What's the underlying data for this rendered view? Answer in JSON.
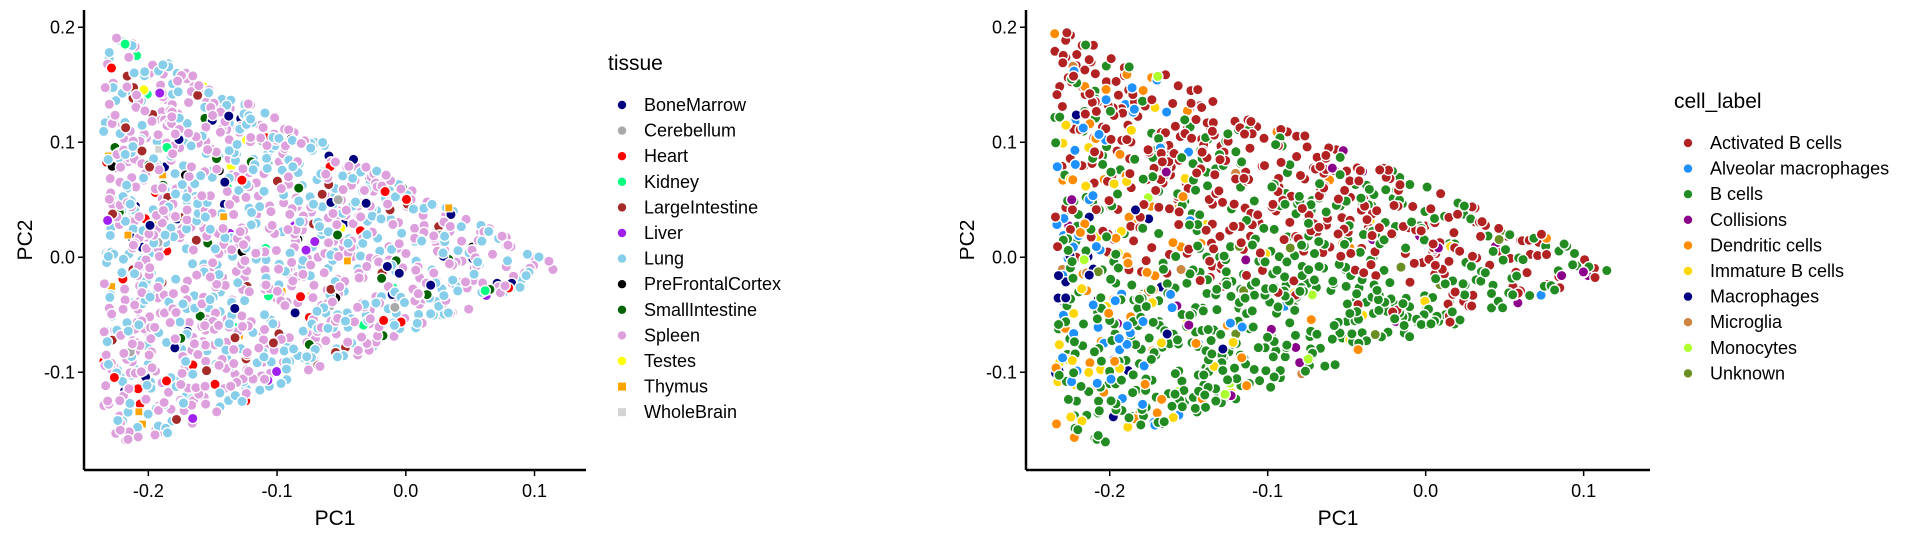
{
  "chart_data": [
    {
      "type": "scatter",
      "xlabel": "PC1",
      "ylabel": "PC2",
      "xlim": [
        -0.25,
        0.14
      ],
      "ylim": [
        -0.185,
        0.215
      ],
      "xticks": [
        -0.2,
        -0.1,
        0.0,
        0.1
      ],
      "xtick_labels": [
        "-0.2",
        "-0.1",
        "0.0",
        "0.1"
      ],
      "yticks": [
        -0.1,
        0.0,
        0.1,
        0.2
      ],
      "ytick_labels": [
        "-0.1",
        "0.0",
        "0.1",
        "0.2"
      ],
      "grid": false,
      "legend": {
        "title": "tissue",
        "placement": "right",
        "entries": [
          {
            "label": "BoneMarrow",
            "color": "#00007f",
            "shape": "circle"
          },
          {
            "label": "Cerebellum",
            "color": "#a9a9a9",
            "shape": "circle"
          },
          {
            "label": "Heart",
            "color": "#ff0000",
            "shape": "circle"
          },
          {
            "label": "Kidney",
            "color": "#00ff7f",
            "shape": "circle"
          },
          {
            "label": "LargeIntestine",
            "color": "#a52a2a",
            "shape": "circle"
          },
          {
            "label": "Liver",
            "color": "#a020f0",
            "shape": "circle"
          },
          {
            "label": "Lung",
            "color": "#87ceeb",
            "shape": "circle"
          },
          {
            "label": "PreFrontalCortex",
            "color": "#000000",
            "shape": "circle"
          },
          {
            "label": "SmallIntestine",
            "color": "#006400",
            "shape": "circle"
          },
          {
            "label": "Spleen",
            "color": "#dda0dd",
            "shape": "circle"
          },
          {
            "label": "Testes",
            "color": "#ffff00",
            "shape": "circle"
          },
          {
            "label": "Thymus",
            "color": "#ffa500",
            "shape": "square"
          },
          {
            "label": "WholeBrain",
            "color": "#d3d3d3",
            "shape": "square"
          }
        ]
      },
      "distribution": {
        "region": [
          [
            -0.235,
            0.2
          ],
          [
            0.125,
            -0.01
          ],
          [
            -0.21,
            -0.165
          ],
          [
            -0.235,
            -0.15
          ]
        ],
        "point_count": 1400,
        "weights": [
          3,
          0.4,
          2,
          0.6,
          3,
          1,
          35,
          1.5,
          2,
          50,
          0.4,
          1.5,
          0.2
        ]
      }
    },
    {
      "type": "scatter",
      "xlabel": "PC1",
      "ylabel": "PC2",
      "xlim": [
        -0.253,
        0.142
      ],
      "ylim": [
        -0.185,
        0.215
      ],
      "xticks": [
        -0.2,
        -0.1,
        0.0,
        0.1
      ],
      "xtick_labels": [
        "-0.2",
        "-0.1",
        "0.0",
        "0.1"
      ],
      "yticks": [
        -0.1,
        0.0,
        0.1,
        0.2
      ],
      "ytick_labels": [
        "-0.1",
        "0.0",
        "0.1",
        "0.2"
      ],
      "grid": false,
      "legend": {
        "title": "cell_label",
        "placement": "right",
        "entries": [
          {
            "label": "Activated B cells",
            "color": "#b22222",
            "shape": "circle"
          },
          {
            "label": "Alveolar macrophages",
            "color": "#1e90ff",
            "shape": "circle"
          },
          {
            "label": "B cells",
            "color": "#228b22",
            "shape": "circle"
          },
          {
            "label": "Collisions",
            "color": "#8b008b",
            "shape": "circle"
          },
          {
            "label": "Dendritic cells",
            "color": "#ff8c00",
            "shape": "circle"
          },
          {
            "label": "Immature B cells",
            "color": "#ffd700",
            "shape": "circle"
          },
          {
            "label": "Macrophages",
            "color": "#000080",
            "shape": "circle"
          },
          {
            "label": "Microglia",
            "color": "#cd853f",
            "shape": "circle"
          },
          {
            "label": "Monocytes",
            "color": "#adff2f",
            "shape": "circle"
          },
          {
            "label": "Unknown",
            "color": "#6b8e23",
            "shape": "circle"
          }
        ]
      },
      "distribution": {
        "region": [
          [
            -0.235,
            0.2
          ],
          [
            0.125,
            -0.01
          ],
          [
            -0.21,
            -0.165
          ],
          [
            -0.235,
            -0.15
          ]
        ],
        "point_count": 1300
      }
    }
  ]
}
